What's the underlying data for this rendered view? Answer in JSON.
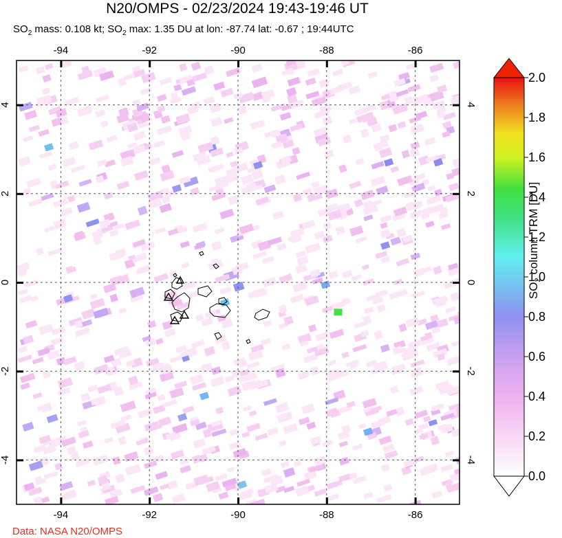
{
  "header": {
    "title": "N20/OMPS - 02/23/2024 19:43-19:46 UT",
    "subtitle_prefix": "SO",
    "subtitle_sub": "2",
    "subtitle_mid": " mass: 0.108 kt; SO",
    "subtitle_sub2": "2",
    "subtitle_rest": " max: 1.35 DU at lon: -87.74 lat: -0.67 ; 19:44UTC"
  },
  "map": {
    "lon_ticks": [
      "-94",
      "-92",
      "-90",
      "-88",
      "-86"
    ],
    "lat_ticks_left": [
      "4",
      "2",
      "0",
      "-2",
      "-4"
    ],
    "lat_ticks_right": [
      "4",
      "2",
      "0",
      "-2",
      "-4"
    ],
    "lon_range": [
      -95,
      -85
    ],
    "lat_range": [
      -5,
      5
    ],
    "grid": true,
    "max_marker": {
      "lon": -87.74,
      "lat": -0.67,
      "color": "#44e044"
    }
  },
  "colorbar": {
    "title_prefix": "SO",
    "title_sub": "2",
    "title_rest": " column TRM [DU]",
    "labels": [
      "2.0",
      "1.8",
      "1.6",
      "1.4",
      "1.2",
      "1.0",
      "0.8",
      "0.6",
      "0.4",
      "0.2",
      "0.0"
    ],
    "colors": [
      "#ffffff",
      "#f9c6f0",
      "#b6a0f0",
      "#8080f0",
      "#60b0f0",
      "#60f0f0",
      "#40e040",
      "#c0f020",
      "#f0f020",
      "#f0a020",
      "#f04010",
      "#e00000"
    ],
    "over_color": "#ff2000",
    "under_color": "#ffffff"
  },
  "footer": {
    "credit": "Data: NASA N20/OMPS"
  }
}
